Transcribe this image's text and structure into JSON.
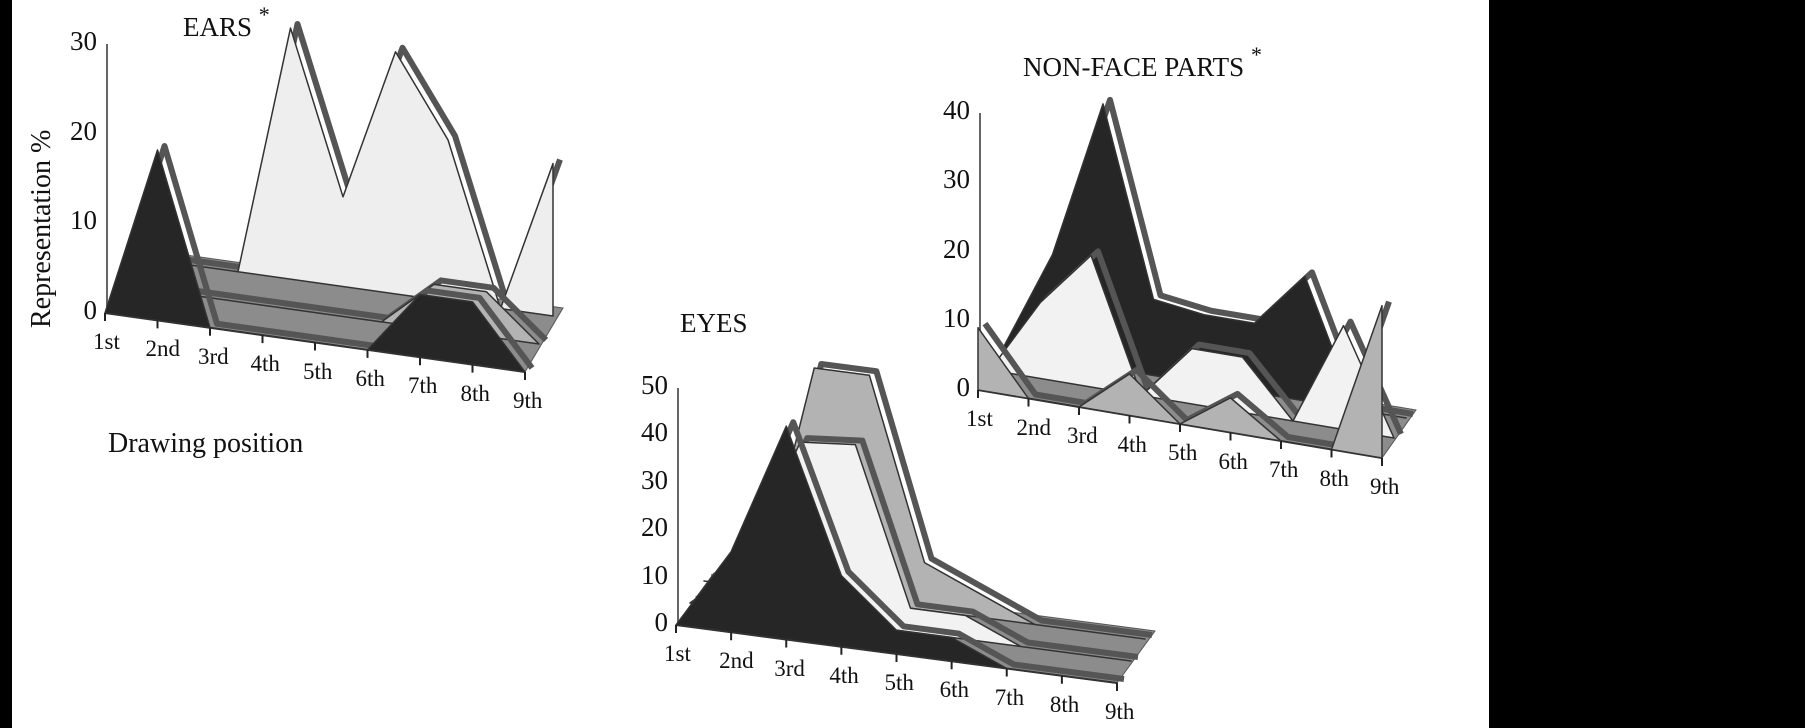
{
  "chart_data": [
    {
      "type": "area",
      "title": "EARS",
      "title_mark": "*",
      "xlabel": "Drawing position",
      "ylabel": "Representation %",
      "ylim": [
        0,
        30
      ],
      "yticks": [
        "0",
        "10",
        "20",
        "30"
      ],
      "categories": [
        "1st",
        "2nd",
        "3rd",
        "4th",
        "5th",
        "6th",
        "7th",
        "8th",
        "9th"
      ],
      "series": [
        {
          "name": "front (black)",
          "color": "#262626",
          "values": [
            0,
            19,
            0,
            0,
            0,
            0,
            7,
            7,
            0
          ]
        },
        {
          "name": "middle (gray)",
          "color": "#b3b3b3",
          "values": [
            0,
            0,
            0,
            0,
            0,
            0,
            5,
            5,
            0
          ]
        },
        {
          "name": "back (light)",
          "color": "#eeeeee",
          "values": [
            0,
            0,
            0,
            28,
            10,
            27,
            18,
            0,
            17
          ]
        }
      ],
      "grid": false,
      "style": "3D stacked-depth area"
    },
    {
      "type": "area",
      "title": "EYES",
      "title_mark": "",
      "xlabel": "",
      "ylabel": "",
      "ylim": [
        0,
        50
      ],
      "yticks": [
        "0",
        "10",
        "20",
        "30",
        "40",
        "50"
      ],
      "categories": [
        "1st",
        "2nd",
        "3rd",
        "4th",
        "5th",
        "6th",
        "7th",
        "8th",
        "9th"
      ],
      "series": [
        {
          "name": "front (black)",
          "color": "#262626",
          "values": [
            0,
            17,
            45,
            15,
            5,
            5,
            0,
            0,
            0
          ]
        },
        {
          "name": "middle (light)",
          "color": "#f2f2f2",
          "values": [
            0,
            10,
            37,
            38,
            5,
            5,
            0,
            0,
            0
          ]
        },
        {
          "name": "back (gray)",
          "color": "#b3b3b3",
          "values": [
            0,
            0,
            48,
            48,
            10,
            5,
            0,
            0,
            0
          ]
        }
      ],
      "grid": false,
      "style": "3D stacked-depth area"
    },
    {
      "type": "area",
      "title": "NON-FACE PARTS",
      "title_mark": "*",
      "xlabel": "",
      "ylabel": "",
      "ylim": [
        0,
        40
      ],
      "yticks": [
        "0",
        "10",
        "20",
        "30",
        "40"
      ],
      "categories": [
        "1st",
        "2nd",
        "3rd",
        "4th",
        "5th",
        "6th",
        "7th",
        "8th",
        "9th"
      ],
      "series": [
        {
          "name": "front (gray)",
          "color": "#b3b3b3",
          "values": [
            9,
            0,
            0,
            6,
            0,
            5,
            0,
            0,
            22
          ]
        },
        {
          "name": "middle (light)",
          "color": "#f2f2f2",
          "values": [
            0,
            11,
            19,
            0,
            8,
            8,
            0,
            15,
            0
          ]
        },
        {
          "name": "back (black)",
          "color": "#262626",
          "values": [
            0,
            15,
            38,
            11,
            10,
            10,
            18,
            0,
            0
          ]
        }
      ],
      "grid": false,
      "style": "3D stacked-depth area"
    }
  ],
  "charts": {
    "ears": {
      "title": "EARS",
      "mark": "*",
      "ylabel": "Representation %",
      "xlabel": "Drawing position"
    },
    "eyes": {
      "title": "EYES"
    },
    "nonface": {
      "title": "NON-FACE PARTS",
      "mark": "*"
    }
  },
  "colors": {
    "black_series": "#262626",
    "gray_series": "#b3b3b3",
    "light_series": "#eeeeee",
    "floor": "#8c8c8c",
    "background": "#ffffff",
    "frame": "#000000"
  }
}
